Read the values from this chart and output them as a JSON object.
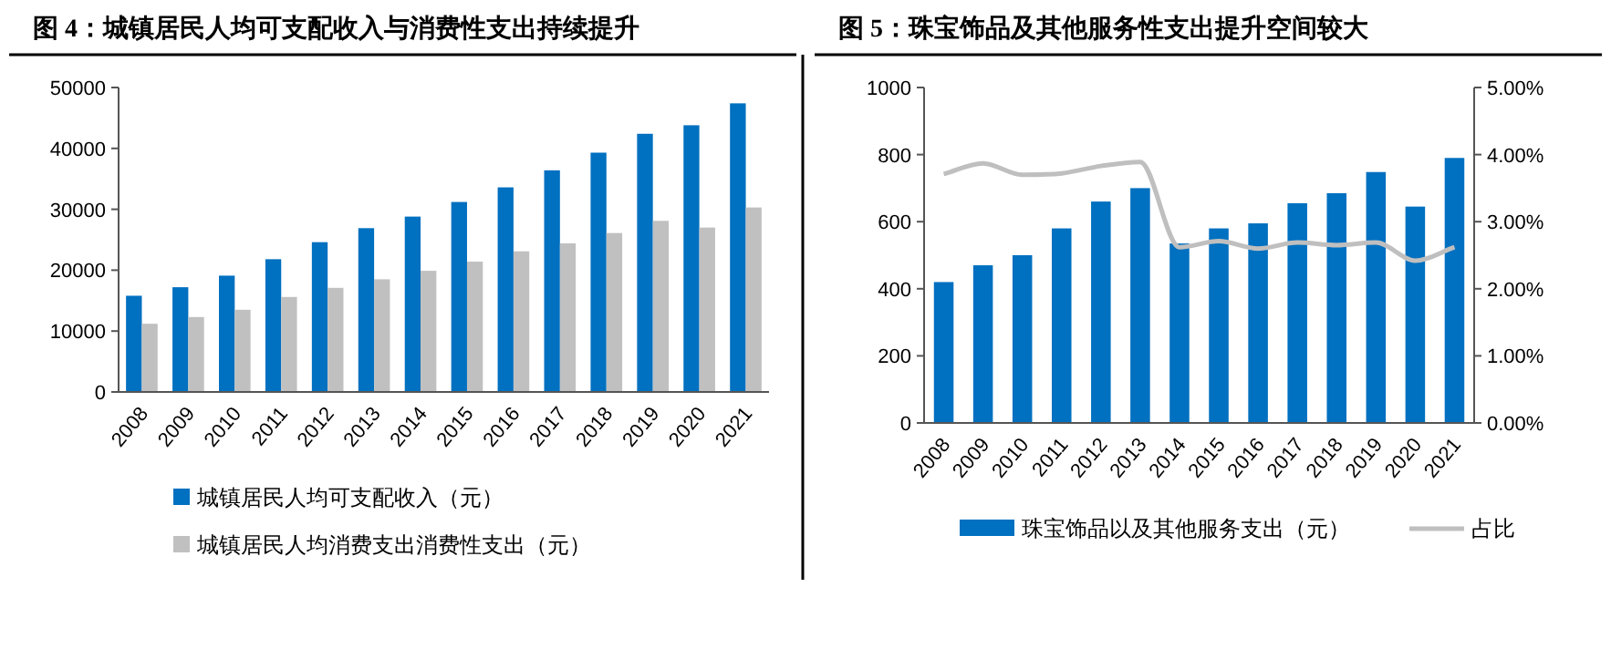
{
  "chart_data": [
    {
      "type": "bar",
      "title": "图 4：城镇居民人均可支配收入与消费性支出持续提升",
      "categories": [
        "2008",
        "2009",
        "2010",
        "2011",
        "2012",
        "2013",
        "2014",
        "2015",
        "2016",
        "2017",
        "2018",
        "2019",
        "2020",
        "2021"
      ],
      "series": [
        {
          "name": "城镇居民人均可支配收入（元）",
          "color": "#0070c0",
          "values": [
            15800,
            17200,
            19100,
            21800,
            24600,
            26900,
            28800,
            31200,
            33600,
            36400,
            39300,
            42400,
            43800,
            47400
          ]
        },
        {
          "name": "城镇居民人均消费支出消费性支出（元）",
          "color": "#c0c0c0",
          "values": [
            11200,
            12300,
            13500,
            15600,
            17100,
            18500,
            19900,
            21400,
            23100,
            24400,
            26100,
            28100,
            27000,
            30300
          ]
        }
      ],
      "ylim": [
        0,
        50000
      ],
      "yticks": [
        0,
        10000,
        20000,
        30000,
        40000,
        50000
      ],
      "legend": "bottom"
    },
    {
      "type": "bar",
      "title": "图 5：珠宝饰品及其他服务性支出提升空间较大",
      "categories": [
        "2008",
        "2009",
        "2010",
        "2011",
        "2012",
        "2013",
        "2014",
        "2015",
        "2016",
        "2017",
        "2018",
        "2019",
        "2020",
        "2021"
      ],
      "series": [
        {
          "name": "珠宝饰品以及其他服务支出（元）",
          "color": "#0070c0",
          "values": [
            420,
            470,
            500,
            580,
            660,
            700,
            535,
            580,
            595,
            655,
            685,
            748,
            645,
            790
          ]
        },
        {
          "name": "占比",
          "type": "line",
          "axis": "y2",
          "color": "#bfbfbf",
          "values": [
            3.71,
            3.87,
            3.7,
            3.72,
            3.83,
            3.89,
            2.62,
            2.71,
            2.6,
            2.69,
            2.65,
            2.69,
            2.42,
            2.62
          ]
        }
      ],
      "ylim": [
        0,
        1000
      ],
      "yticks": [
        0,
        200,
        400,
        600,
        800,
        1000
      ],
      "y2lim": [
        0,
        5
      ],
      "y2ticks": [
        {
          "value": 0,
          "label": "0.00%"
        },
        {
          "value": 1,
          "label": "1.00%"
        },
        {
          "value": 2,
          "label": "2.00%"
        },
        {
          "value": 3,
          "label": "3.00%"
        },
        {
          "value": 4,
          "label": "4.00%"
        },
        {
          "value": 5,
          "label": "5.00%"
        }
      ],
      "legend": "bottom"
    }
  ]
}
